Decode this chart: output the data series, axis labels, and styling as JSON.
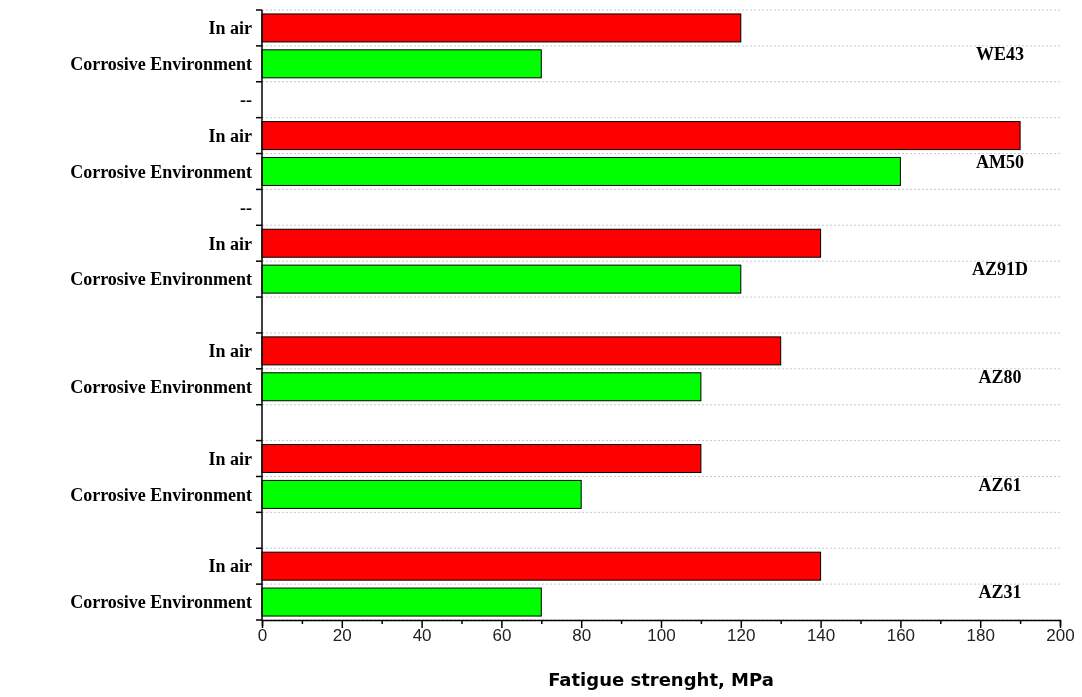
{
  "chart_data": {
    "type": "bar",
    "orientation": "horizontal",
    "xlabel": "Fatigue strenght, MPa",
    "categories": [
      "In air",
      "Corrosive Environment",
      "--",
      "In air",
      "Corrosive Environment",
      "--",
      "In air",
      "Corrosive Environment",
      null,
      "In air",
      "Corrosive Environment",
      null,
      "In air",
      "Corrosive Environment",
      null,
      "In air",
      "Corrosive Environment"
    ],
    "values": [
      120,
      70,
      null,
      190,
      160,
      null,
      140,
      120,
      null,
      130,
      110,
      null,
      110,
      80,
      null,
      140,
      70
    ],
    "colors": [
      "#ff0000",
      "#00ff00",
      null,
      "#ff0000",
      "#00ff00",
      null,
      "#ff0000",
      "#00ff00",
      null,
      "#ff0000",
      "#00ff00",
      null,
      "#ff0000",
      "#00ff00",
      null,
      "#ff0000",
      "#00ff00"
    ],
    "annotations": [
      "WE43",
      "AM50",
      "AZ91D",
      "AZ80",
      "AZ61",
      "AZ31"
    ],
    "xlim": [
      0,
      200
    ],
    "xticks": [
      0,
      {
        "value": 10,
        "label": null
      },
      20,
      {
        "value": 30,
        "label": null
      },
      40,
      {
        "value": 50,
        "label": null
      },
      60,
      {
        "value": 70,
        "label": null
      },
      80,
      {
        "value": 90,
        "label": null
      },
      100,
      {
        "value": 110,
        "label": null
      },
      120,
      {
        "value": 130,
        "label": null
      },
      140,
      {
        "value": 150,
        "label": null
      },
      160,
      {
        "value": 170,
        "label": null
      },
      180,
      {
        "value": 190,
        "label": null
      },
      200
    ],
    "grid": "y"
  }
}
